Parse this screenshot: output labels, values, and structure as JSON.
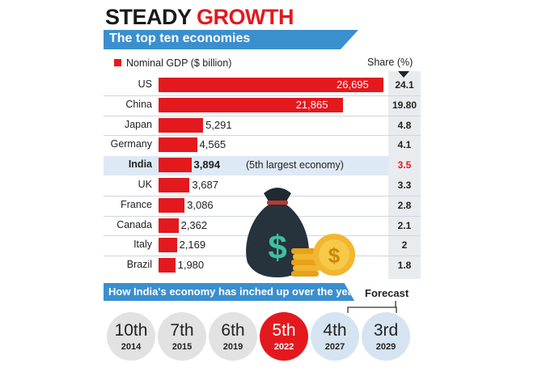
{
  "header": {
    "title_word1": "STEADY",
    "title_word2": "GROWTH"
  },
  "subtitle": "The top ten economies",
  "share_header": "Share (%)",
  "highlight_note": "(5th largest economy)",
  "colors": {
    "bar": "#e3191e",
    "accent_blue": "#3a8fcf",
    "highlight_row": "#dde9f4"
  },
  "chart_data": [
    {
      "type": "bar",
      "orientation": "horizontal",
      "title": "The top ten economies",
      "legend": [
        "Nominal GDP ($ billion)"
      ],
      "categories": [
        "US",
        "China",
        "Japan",
        "Germany",
        "India",
        "UK",
        "France",
        "Canada",
        "Italy",
        "Brazil"
      ],
      "series": [
        {
          "name": "Nominal GDP ($ billion)",
          "values": [
            26695,
            21865,
            5291,
            4565,
            3894,
            3687,
            3086,
            2362,
            2169,
            1980
          ],
          "labels": [
            "26,695",
            "21,865",
            "5,291",
            "4,565",
            "3,894",
            "3,687",
            "3,086",
            "2,362",
            "2,169",
            "1,980"
          ]
        }
      ],
      "share": [
        "24.1",
        "19.80",
        "4.8",
        "4.1",
        "3.5",
        "3.3",
        "2.8",
        "2.1",
        "2",
        "1.8"
      ],
      "highlight": "India",
      "grid": false
    },
    {
      "type": "table",
      "title": "How India's economy has inched up over the years",
      "forecast_label": "Forecast",
      "items": [
        {
          "rank": "10th",
          "year": "2014",
          "status": "past"
        },
        {
          "rank": "7th",
          "year": "2015",
          "status": "past"
        },
        {
          "rank": "6th",
          "year": "2019",
          "status": "past"
        },
        {
          "rank": "5th",
          "year": "2022",
          "status": "current"
        },
        {
          "rank": "4th",
          "year": "2027",
          "status": "forecast"
        },
        {
          "rank": "3rd",
          "year": "2029",
          "status": "forecast"
        }
      ]
    }
  ]
}
